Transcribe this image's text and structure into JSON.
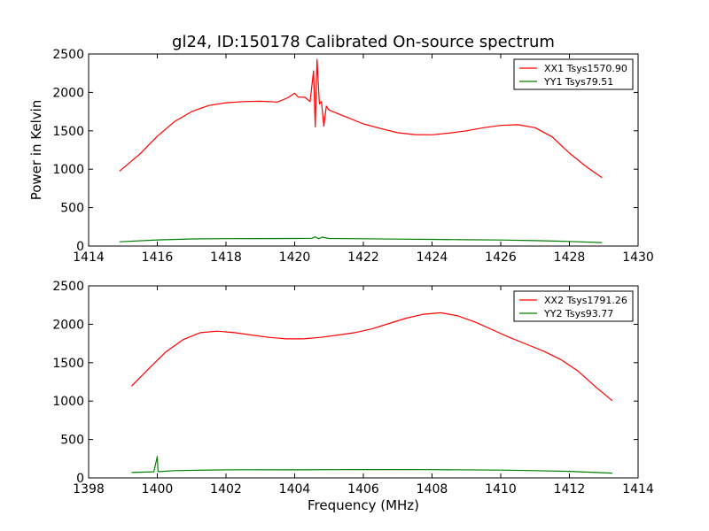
{
  "colors": {
    "xx": "#ff0000",
    "yy": "#008000",
    "frame": "#000000",
    "background": "#ffffff"
  },
  "chart_data": [
    {
      "type": "line",
      "title": "gl24, ID:150178 Calibrated On-source spectrum",
      "xlabel": "",
      "ylabel": "Power in Kelvin",
      "xlim": [
        1414,
        1430
      ],
      "ylim": [
        0,
        2500
      ],
      "xticks": [
        1414,
        1416,
        1418,
        1420,
        1422,
        1424,
        1426,
        1428,
        1430
      ],
      "yticks": [
        0,
        500,
        1000,
        1500,
        2000,
        2500
      ],
      "legend_position": "top-right",
      "series": [
        {
          "name": "XX1 Tsys1570.90",
          "color": "#ff0000",
          "x": [
            1414.9,
            1415.5,
            1416.0,
            1416.5,
            1417.0,
            1417.5,
            1418.0,
            1418.5,
            1419.0,
            1419.5,
            1419.8,
            1420.0,
            1420.1,
            1420.3,
            1420.45,
            1420.55,
            1420.6,
            1420.65,
            1420.72,
            1420.78,
            1420.85,
            1420.92,
            1421.0,
            1421.5,
            1422.0,
            1422.5,
            1423.0,
            1423.5,
            1424.0,
            1424.5,
            1425.0,
            1425.5,
            1426.0,
            1426.5,
            1427.0,
            1427.5,
            1428.0,
            1428.5,
            1428.95
          ],
          "y": [
            975,
            1200,
            1430,
            1620,
            1750,
            1830,
            1865,
            1880,
            1885,
            1875,
            1930,
            1990,
            1940,
            1935,
            1880,
            2280,
            1550,
            2430,
            1850,
            1880,
            1560,
            1820,
            1770,
            1680,
            1590,
            1530,
            1475,
            1450,
            1448,
            1470,
            1500,
            1540,
            1570,
            1580,
            1540,
            1420,
            1210,
            1030,
            890
          ]
        },
        {
          "name": "YY1 Tsys79.51",
          "color": "#008000",
          "x": [
            1414.9,
            1416.0,
            1417.0,
            1418.0,
            1419.0,
            1420.0,
            1420.5,
            1420.6,
            1420.7,
            1420.8,
            1421.0,
            1422.0,
            1423.0,
            1424.0,
            1425.0,
            1426.0,
            1427.0,
            1428.0,
            1428.95
          ],
          "y": [
            55,
            80,
            92,
            96,
            97,
            98,
            100,
            120,
            95,
            115,
            98,
            95,
            90,
            86,
            82,
            78,
            70,
            60,
            45
          ]
        }
      ]
    },
    {
      "type": "line",
      "title": "",
      "xlabel": "Frequency (MHz)",
      "ylabel": "",
      "xlim": [
        1398,
        1414
      ],
      "ylim": [
        0,
        2500
      ],
      "xticks": [
        1398,
        1400,
        1402,
        1404,
        1406,
        1408,
        1410,
        1412,
        1414
      ],
      "yticks": [
        0,
        500,
        1000,
        1500,
        2000,
        2500
      ],
      "legend_position": "top-right",
      "series": [
        {
          "name": "XX2 Tsys1791.26",
          "color": "#ff0000",
          "x": [
            1399.25,
            1399.75,
            1400.25,
            1400.75,
            1401.25,
            1401.75,
            1402.25,
            1402.75,
            1403.25,
            1403.75,
            1404.25,
            1404.75,
            1405.25,
            1405.75,
            1406.25,
            1406.75,
            1407.25,
            1407.75,
            1408.25,
            1408.75,
            1409.25,
            1409.75,
            1410.25,
            1410.75,
            1411.25,
            1411.75,
            1412.25,
            1412.75,
            1413.25
          ],
          "y": [
            1195,
            1420,
            1640,
            1800,
            1890,
            1910,
            1890,
            1860,
            1830,
            1810,
            1810,
            1830,
            1860,
            1890,
            1940,
            2010,
            2080,
            2130,
            2150,
            2110,
            2030,
            1930,
            1830,
            1740,
            1650,
            1540,
            1390,
            1190,
            1005
          ]
        },
        {
          "name": "YY2 Tsys93.77",
          "color": "#008000",
          "x": [
            1399.25,
            1399.9,
            1400.0,
            1400.02,
            1400.06,
            1400.5,
            1401.5,
            1402.5,
            1404.0,
            1406.0,
            1408.0,
            1410.0,
            1411.0,
            1412.0,
            1413.25
          ],
          "y": [
            70,
            80,
            280,
            85,
            82,
            95,
            103,
            106,
            105,
            108,
            107,
            101,
            95,
            85,
            62
          ]
        }
      ]
    }
  ]
}
